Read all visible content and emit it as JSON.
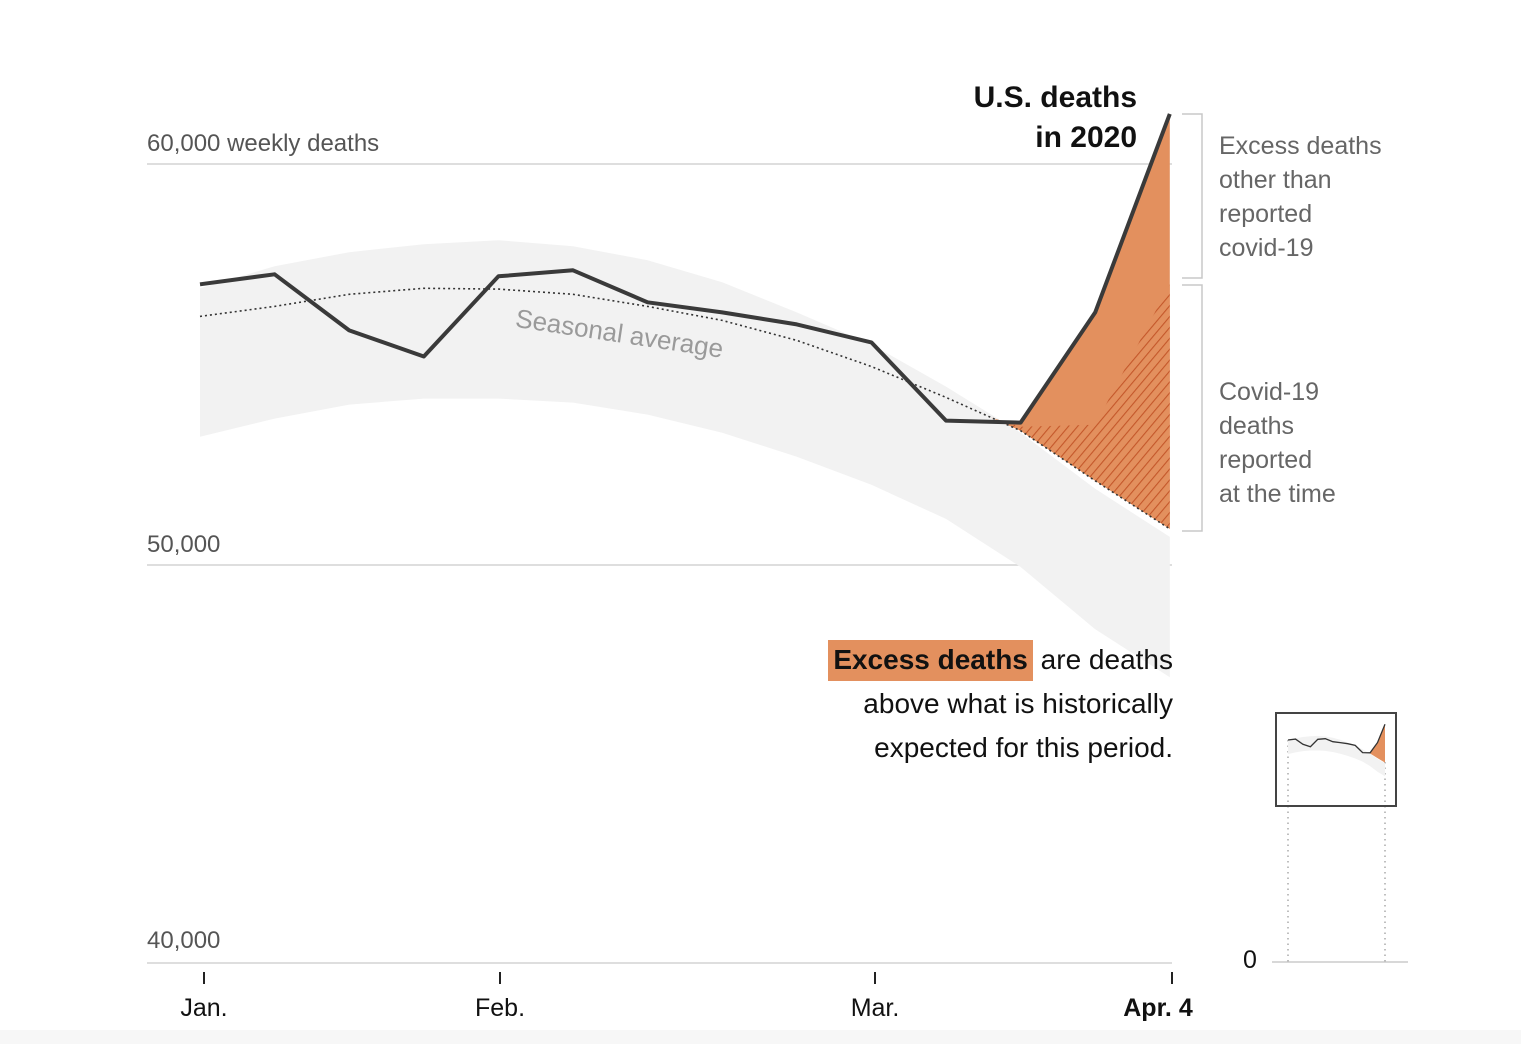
{
  "colors": {
    "line": "#3a3a3a",
    "band": "#f2f2f2",
    "excess": "#e3905e",
    "hatch": "#c4572a",
    "grid": "#d4d4d4",
    "bracket": "#c8c8c8"
  },
  "chart_data": {
    "type": "line",
    "title": "U.S. deaths in 2020",
    "ylabel": "weekly deaths",
    "ylim": [
      40000,
      62000
    ],
    "y_ticks": [
      {
        "value": 60000,
        "label": "60,000 weekly deaths"
      },
      {
        "value": 50000,
        "label": "50,000"
      },
      {
        "value": 40000,
        "label": "40,000"
      }
    ],
    "x_ticks": [
      {
        "week": 0.05,
        "label": "Jan.",
        "bold": false
      },
      {
        "week": 4.05,
        "label": "Feb.",
        "bold": false
      },
      {
        "week": 9.1,
        "label": "Mar.",
        "bold": false
      },
      {
        "week": 13.0,
        "label": "Apr. 4",
        "bold": true
      }
    ],
    "grid": true,
    "weeks": [
      0,
      1,
      2,
      3,
      4,
      5,
      6,
      7,
      8,
      9,
      10,
      11,
      12,
      13
    ],
    "series": [
      {
        "name": "U.S. deaths in 2020",
        "style": "solid",
        "values": [
          57000,
          57250,
          55850,
          55200,
          57200,
          57350,
          56550,
          56300,
          56000,
          55550,
          53600,
          53550,
          56300,
          61250
        ]
      },
      {
        "name": "Seasonal average",
        "style": "dotted",
        "values": [
          56200,
          56450,
          56750,
          56900,
          56880,
          56750,
          56450,
          56100,
          55600,
          54950,
          54180,
          53350,
          52100,
          50900
        ]
      },
      {
        "name": "Covid-19 deaths reported at the time (top of hatched area)",
        "style": "hatched",
        "values": [
          null,
          null,
          null,
          null,
          null,
          null,
          null,
          null,
          null,
          null,
          null,
          53450,
          53500,
          57000
        ]
      }
    ],
    "band": {
      "name": "Historical range",
      "upper": [
        56900,
        57450,
        57800,
        58000,
        58100,
        57950,
        57600,
        57050,
        56300,
        55500,
        54450,
        53300,
        51900,
        50700
      ],
      "lower": [
        53200,
        53650,
        54000,
        54150,
        54150,
        54050,
        53750,
        53300,
        52700,
        52000,
        51150,
        49950,
        48400,
        47200
      ]
    },
    "annotations": [
      "Seasonal average",
      "Excess deaths other than reported covid-19",
      "Covid-19 deaths reported at the time"
    ]
  },
  "labels": {
    "title_line1": "U.S. deaths",
    "title_line2": "in 2020",
    "seasonal": "Seasonal average",
    "excess_other": [
      "Excess deaths",
      "other than",
      "reported",
      "covid-19"
    ],
    "covid_reported": [
      "Covid-19",
      "deaths",
      "reported",
      "at the time"
    ],
    "note_highlight": "Excess deaths",
    "note_line1_rest": " are deaths",
    "note_line2": "above what is historically",
    "note_line3": "expected for this period.",
    "inset_zero": "0"
  }
}
